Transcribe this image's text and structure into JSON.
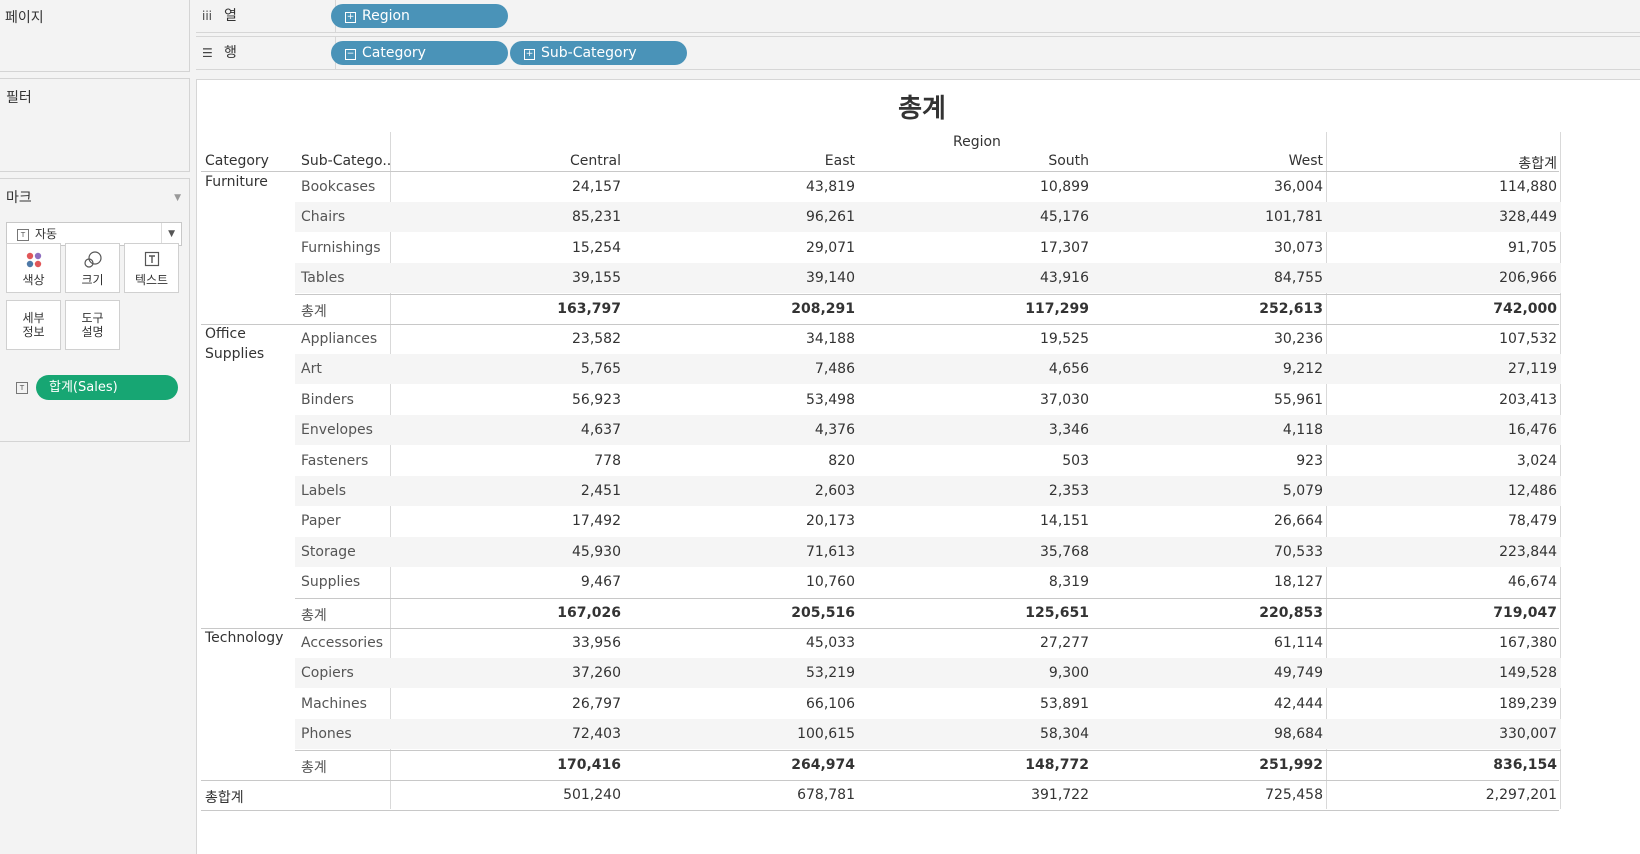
{
  "sidebar": {
    "pages_title": "페이지",
    "filters_title": "필터",
    "marks_title": "마크",
    "mark_type": "자동",
    "mark_buttons": [
      {
        "label": "색상",
        "icon": "color-dots-icon"
      },
      {
        "label": "크기",
        "icon": "size-circles-icon"
      },
      {
        "label": "텍스트",
        "icon": "text-box-icon"
      },
      {
        "label": "세부\n정보",
        "icon": ""
      },
      {
        "label": "도구\n설명",
        "icon": ""
      }
    ],
    "measure_pill": "합계(Sales)"
  },
  "shelves": {
    "columns_label": "열",
    "rows_label": "행",
    "columns_pills": [
      "Region"
    ],
    "rows_pills": [
      "Category",
      "Sub-Category"
    ]
  },
  "view": {
    "title": "총계",
    "region_header": "Region",
    "category_header": "Category",
    "subcategory_header": "Sub-Catego..",
    "columns": [
      "Central",
      "East",
      "South",
      "West",
      "총합계"
    ],
    "groups": [
      {
        "category": "Furniture",
        "rows": [
          {
            "sub": "Bookcases",
            "values": [
              "24,157",
              "43,819",
              "10,899",
              "36,004",
              "114,880"
            ]
          },
          {
            "sub": "Chairs",
            "values": [
              "85,231",
              "96,261",
              "45,176",
              "101,781",
              "328,449"
            ]
          },
          {
            "sub": "Furnishings",
            "values": [
              "15,254",
              "29,071",
              "17,307",
              "30,073",
              "91,705"
            ]
          },
          {
            "sub": "Tables",
            "values": [
              "39,155",
              "39,140",
              "43,916",
              "84,755",
              "206,966"
            ]
          }
        ],
        "total": {
          "label": "총계",
          "values": [
            "163,797",
            "208,291",
            "117,299",
            "252,613",
            "742,000"
          ]
        }
      },
      {
        "category": "Office\nSupplies",
        "rows": [
          {
            "sub": "Appliances",
            "values": [
              "23,582",
              "34,188",
              "19,525",
              "30,236",
              "107,532"
            ]
          },
          {
            "sub": "Art",
            "values": [
              "5,765",
              "7,486",
              "4,656",
              "9,212",
              "27,119"
            ]
          },
          {
            "sub": "Binders",
            "values": [
              "56,923",
              "53,498",
              "37,030",
              "55,961",
              "203,413"
            ]
          },
          {
            "sub": "Envelopes",
            "values": [
              "4,637",
              "4,376",
              "3,346",
              "4,118",
              "16,476"
            ]
          },
          {
            "sub": "Fasteners",
            "values": [
              "778",
              "820",
              "503",
              "923",
              "3,024"
            ]
          },
          {
            "sub": "Labels",
            "values": [
              "2,451",
              "2,603",
              "2,353",
              "5,079",
              "12,486"
            ]
          },
          {
            "sub": "Paper",
            "values": [
              "17,492",
              "20,173",
              "14,151",
              "26,664",
              "78,479"
            ]
          },
          {
            "sub": "Storage",
            "values": [
              "45,930",
              "71,613",
              "35,768",
              "70,533",
              "223,844"
            ]
          },
          {
            "sub": "Supplies",
            "values": [
              "9,467",
              "10,760",
              "8,319",
              "18,127",
              "46,674"
            ]
          }
        ],
        "total": {
          "label": "총계",
          "values": [
            "167,026",
            "205,516",
            "125,651",
            "220,853",
            "719,047"
          ]
        }
      },
      {
        "category": "Technology",
        "rows": [
          {
            "sub": "Accessories",
            "values": [
              "33,956",
              "45,033",
              "27,277",
              "61,114",
              "167,380"
            ]
          },
          {
            "sub": "Copiers",
            "values": [
              "37,260",
              "53,219",
              "9,300",
              "49,749",
              "149,528"
            ]
          },
          {
            "sub": "Machines",
            "values": [
              "26,797",
              "66,106",
              "53,891",
              "42,444",
              "189,239"
            ]
          },
          {
            "sub": "Phones",
            "values": [
              "72,403",
              "100,615",
              "58,304",
              "98,684",
              "330,007"
            ]
          }
        ],
        "total": {
          "label": "총계",
          "values": [
            "170,416",
            "264,974",
            "148,772",
            "251,992",
            "836,154"
          ]
        }
      }
    ],
    "grand_total": {
      "label": "총합계",
      "values": [
        "501,240",
        "678,781",
        "391,722",
        "725,458",
        "2,297,201"
      ]
    }
  }
}
